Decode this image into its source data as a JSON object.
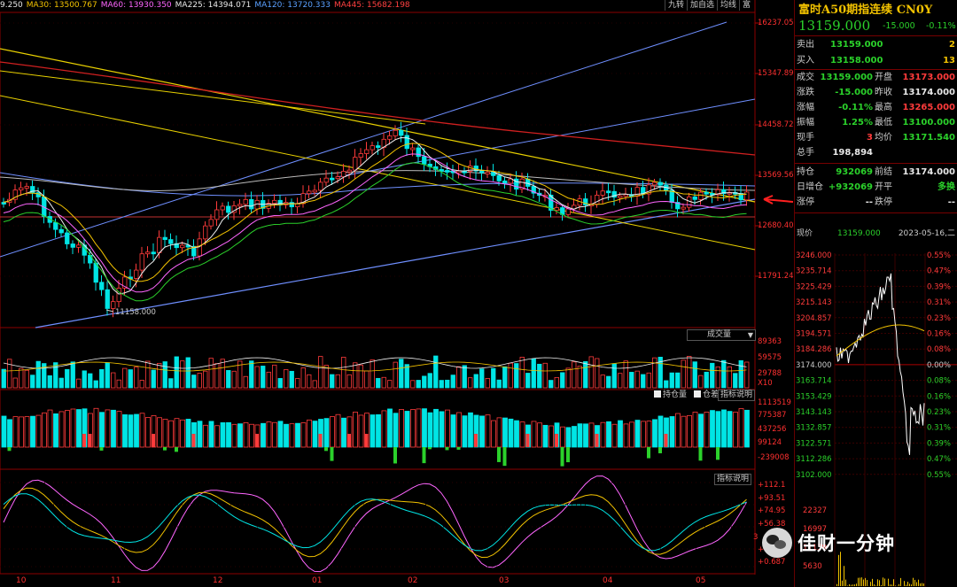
{
  "ma_legend": [
    {
      "label": "9.250",
      "color": "#e8e8e8"
    },
    {
      "label": "MA30: 13500.767",
      "color": "#f2c200"
    },
    {
      "label": "MA60: 13930.350",
      "color": "#ff66ff"
    },
    {
      "label": "MA225: 14394.071",
      "color": "#e8e8e8"
    },
    {
      "label": "MA120: 13720.333",
      "color": "#5aa0ff"
    },
    {
      "label": "MA445: 15682.198",
      "color": "#ff4040"
    }
  ],
  "toolbar": {
    "items": [
      "九转",
      "加自选",
      "均线",
      "富"
    ]
  },
  "price_axis": {
    "labels": [
      "16237.05",
      "15347.89",
      "14458.72",
      "13569.56",
      "12680.40",
      "11791.24"
    ]
  },
  "low_annotation": "11158.000",
  "volume_panel": {
    "title": "成交量",
    "labels": [
      "89363",
      "59575",
      "29788",
      "X10"
    ]
  },
  "oi_panel": {
    "legend": [
      {
        "label": "持仓量",
        "checked": true
      },
      {
        "label": "仓差",
        "checked": true
      }
    ],
    "indicator_button": "指标说明",
    "labels": [
      "1113519",
      "775387",
      "437256",
      "99124",
      "-239008"
    ]
  },
  "osc_panel": {
    "indicator_button": "指标说明",
    "labels": [
      "+112.1",
      "+93.51",
      "+74.95",
      "+56.38",
      "+19.",
      "+0.687"
    ],
    "marker": "3"
  },
  "time_axis": [
    "10",
    "11",
    "12",
    "01",
    "02",
    "03",
    "04",
    "05"
  ],
  "quote": {
    "title": "富时A50期指连续 CN0Y",
    "price": "13159.000",
    "change": "-15.000",
    "change_pct": "-0.11%",
    "sell": {
      "label": "卖出",
      "price": "13159.000",
      "qty": "2"
    },
    "buy": {
      "label": "买入",
      "price": "13158.000",
      "qty": "13"
    },
    "rows": [
      {
        "l": "成交",
        "v": "13159.000",
        "vc": "green",
        "l2": "开盘",
        "v2": "13173.000",
        "v2c": "red"
      },
      {
        "l": "涨跌",
        "v": "-15.000",
        "vc": "green",
        "l2": "昨收",
        "v2": "13174.000",
        "v2c": "white"
      },
      {
        "l": "涨幅",
        "v": "-0.11%",
        "vc": "green",
        "l2": "最高",
        "v2": "13265.000",
        "v2c": "red"
      },
      {
        "l": "振幅",
        "v": "1.25%",
        "vc": "green",
        "l2": "最低",
        "v2": "13100.000",
        "v2c": "green"
      },
      {
        "l": "现手",
        "v": "3",
        "vc": "red",
        "l2": "均价",
        "v2": "13171.540",
        "v2c": "green"
      },
      {
        "l": "总手",
        "v": "198,894",
        "vc": "white",
        "l2": "",
        "v2": "",
        "v2c": "white"
      }
    ],
    "oi_rows": [
      {
        "l": "持仓",
        "v": "932069",
        "vc": "green",
        "l2": "前结",
        "v2": "13174.000",
        "v2c": "white"
      },
      {
        "l": "日增仓",
        "v": "+932069",
        "vc": "green",
        "l2": "开平",
        "v2": "多换",
        "v2c": "green"
      },
      {
        "l": "涨停",
        "v": "--",
        "vc": "white",
        "l2": "跌停",
        "v2": "--",
        "v2c": "white"
      }
    ]
  },
  "intraday": {
    "label": "现价",
    "price": "13159.000",
    "date": "2023-05-16,二",
    "price_labels": [
      "3246.000",
      "3235.714",
      "3225.429",
      "3215.143",
      "3204.857",
      "3194.571",
      "3184.286",
      "3174.000",
      "3163.714",
      "3153.429",
      "3143.143",
      "3132.857",
      "3122.571",
      "3112.286",
      "3102.000"
    ],
    "pct_labels": [
      "0.55%",
      "0.47%",
      "0.39%",
      "0.31%",
      "0.23%",
      "0.16%",
      "0.08%",
      "0.00%",
      "0.08%",
      "0.16%",
      "0.23%",
      "0.31%",
      "0.39%",
      "0.47%",
      "0.55%"
    ],
    "vol_labels": [
      "22327",
      "16997",
      "11139",
      "5630"
    ]
  },
  "watermark": "佳财一分钟",
  "colors": {
    "up": "#ff3b3b",
    "down": "#2bd12b",
    "cyan": "#00e5e5",
    "axis": "#ff3030",
    "title": "#f2c200"
  }
}
